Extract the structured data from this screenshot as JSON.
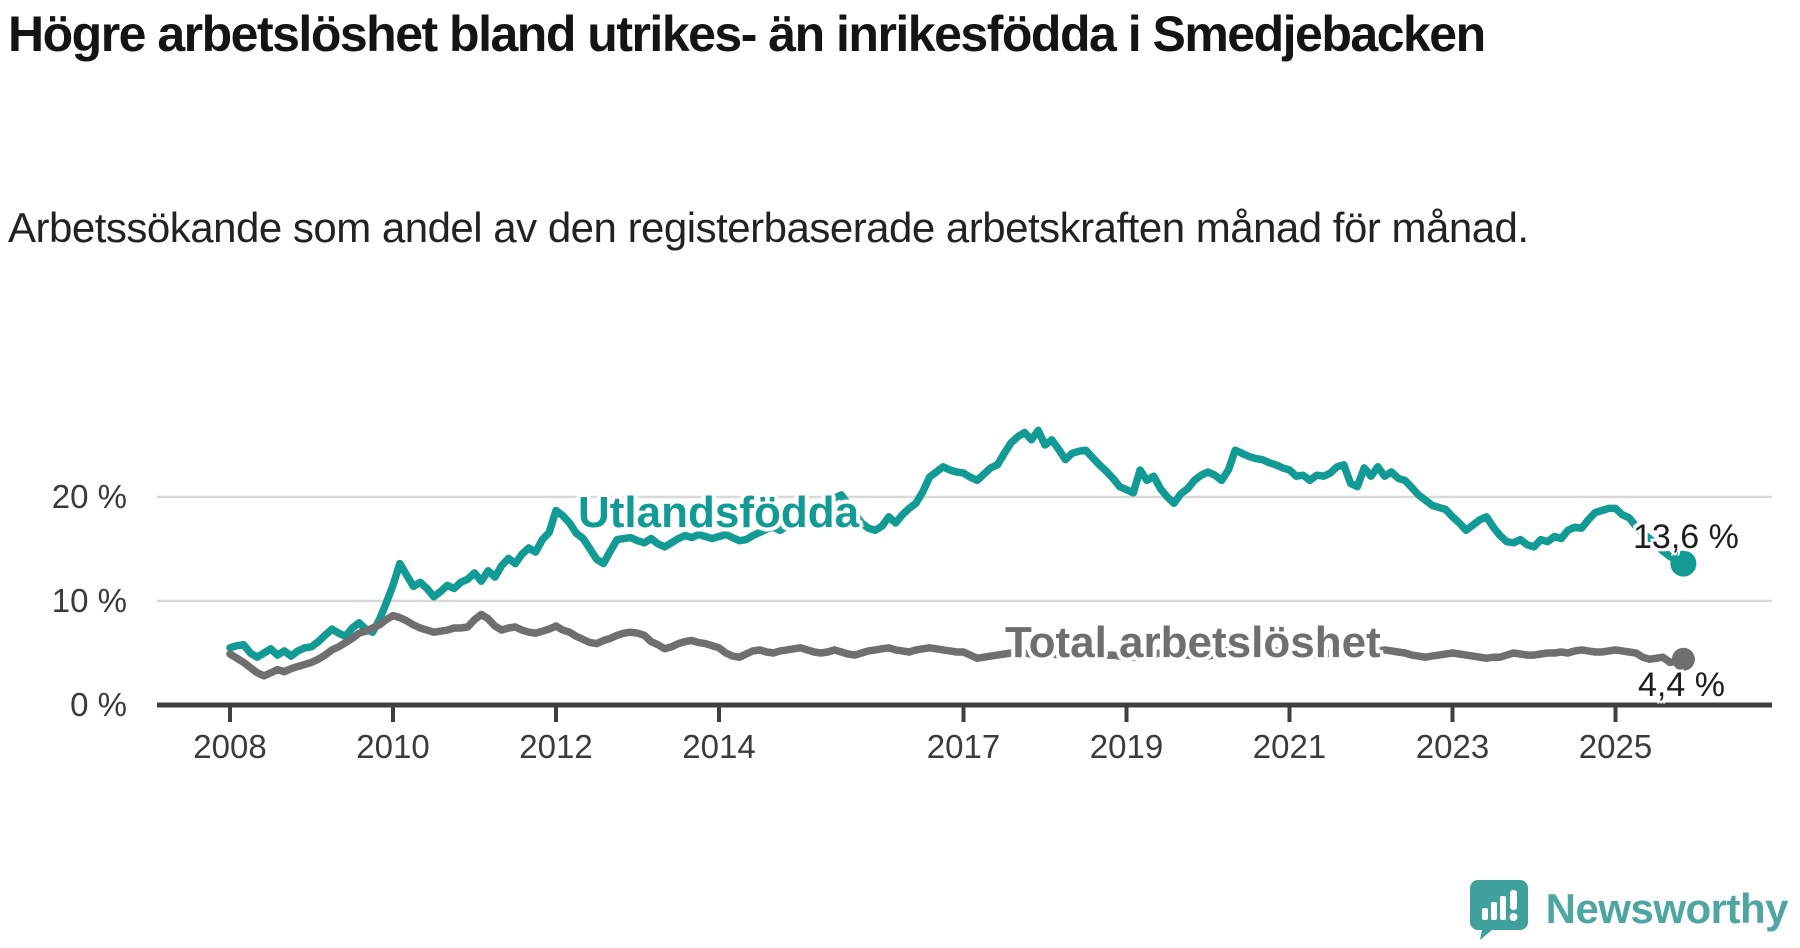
{
  "title": "Högre arbetslöshet bland utrikes- än inrikesfödda i Smedjebacken",
  "subtitle": "Arbetssökande som andel av den registerbaserade arbetskraften månad för månad.",
  "branding": {
    "logo_text": "Newsworthy",
    "logo_icon": "bar-chart-speech-bubble-icon",
    "logo_text_color": "#4ea6a2",
    "logo_icon_color": "#3fa09c"
  },
  "colors": {
    "background": "#ffffff",
    "title_text": "#141414",
    "axis": "#3f3f3f",
    "gridline": "#d9d9d9",
    "tick_text": "#3b3b3b",
    "series_foreign_born": "#129b94",
    "series_total": "#6f6f71"
  },
  "chart_data": {
    "type": "line",
    "title": "Högre arbetslöshet bland utrikes- än inrikesfödda i Smedjebacken",
    "subtitle": "Arbetssökande som andel av den registerbaserade arbetskraften månad för månad.",
    "x_unit": "month",
    "x_range": [
      "2008-01",
      "2025-11"
    ],
    "x_tick_years": [
      2008,
      2010,
      2012,
      2014,
      2017,
      2019,
      2021,
      2023,
      2025
    ],
    "y_ticks": [
      {
        "value": 0,
        "label": "0 %"
      },
      {
        "value": 10,
        "label": "10 %"
      },
      {
        "value": 20,
        "label": "20 %"
      }
    ],
    "ylim": [
      0,
      27
    ],
    "grid": "horizontal",
    "legend": "inline-labels",
    "series": [
      {
        "id": "utlandsfodda",
        "name": "Utlandsfödda",
        "color": "#129b94",
        "end_label": "13,6 %",
        "end_value": 13.6,
        "values": [
          5.5,
          5.7,
          5.8,
          5.0,
          4.6,
          5.0,
          5.4,
          4.8,
          5.2,
          4.7,
          5.2,
          5.5,
          5.6,
          6.1,
          6.7,
          7.3,
          6.9,
          6.6,
          7.4,
          7.9,
          7.3,
          7.0,
          8.2,
          9.8,
          11.5,
          13.6,
          12.5,
          11.4,
          11.8,
          11.2,
          10.4,
          10.9,
          11.5,
          11.2,
          11.8,
          12.1,
          12.7,
          11.9,
          12.9,
          12.3,
          13.4,
          14.1,
          13.6,
          14.5,
          15.1,
          14.7,
          15.9,
          16.6,
          18.7,
          18.2,
          17.5,
          16.5,
          16.0,
          15.0,
          14.0,
          13.6,
          14.8,
          15.9,
          16.0,
          16.1,
          15.8,
          15.6,
          16.0,
          15.5,
          15.2,
          15.6,
          16.0,
          16.3,
          16.1,
          16.4,
          16.2,
          16.0,
          16.2,
          16.4,
          16.1,
          15.8,
          15.9,
          16.3,
          16.6,
          16.9,
          17.1,
          16.8,
          17.2,
          17.5,
          17.8,
          18.2,
          18.6,
          19.0,
          19.5,
          19.9,
          20.2,
          19.3,
          18.4,
          17.5,
          17.0,
          16.8,
          17.2,
          18.1,
          17.5,
          18.3,
          18.9,
          19.4,
          20.5,
          21.9,
          22.4,
          22.9,
          22.6,
          22.4,
          22.3,
          21.9,
          21.6,
          22.2,
          22.8,
          23.1,
          24.2,
          25.2,
          25.8,
          26.2,
          25.5,
          26.4,
          25.0,
          25.5,
          24.6,
          23.6,
          24.2,
          24.4,
          24.5,
          23.8,
          23.1,
          22.5,
          21.8,
          21.0,
          20.7,
          20.4,
          22.6,
          21.6,
          22.0,
          20.8,
          20.0,
          19.4,
          20.3,
          20.8,
          21.6,
          22.1,
          22.4,
          22.1,
          21.6,
          22.6,
          24.5,
          24.2,
          23.9,
          23.7,
          23.6,
          23.3,
          23.1,
          22.8,
          22.6,
          22.0,
          22.1,
          21.6,
          22.1,
          22.0,
          22.3,
          22.9,
          23.1,
          21.3,
          21.0,
          22.8,
          22.0,
          22.9,
          22.0,
          22.4,
          21.8,
          21.6,
          20.9,
          20.2,
          19.7,
          19.2,
          19.0,
          18.8,
          18.1,
          17.5,
          16.8,
          17.3,
          17.8,
          18.1,
          17.1,
          16.3,
          15.7,
          15.6,
          15.9,
          15.4,
          15.2,
          15.9,
          15.7,
          16.2,
          16.0,
          16.8,
          17.1,
          17.0,
          17.8,
          18.5,
          18.7,
          18.9,
          18.9,
          18.3,
          18.0,
          17.2,
          16.5,
          16.0,
          15.4,
          14.8,
          14.3,
          13.9,
          13.6
        ]
      },
      {
        "id": "total-arbetsloshet",
        "name": "Total arbetslöshet",
        "color": "#6f6f71",
        "end_label": "4,4 %",
        "end_value": 4.4,
        "values": [
          4.9,
          4.5,
          4.1,
          3.6,
          3.1,
          2.8,
          3.1,
          3.4,
          3.2,
          3.5,
          3.7,
          3.9,
          4.1,
          4.4,
          4.8,
          5.3,
          5.6,
          6.0,
          6.4,
          6.9,
          7.1,
          7.4,
          7.7,
          8.2,
          8.6,
          8.4,
          8.1,
          7.7,
          7.4,
          7.2,
          7.0,
          7.1,
          7.2,
          7.4,
          7.4,
          7.5,
          8.2,
          8.7,
          8.3,
          7.6,
          7.2,
          7.4,
          7.5,
          7.2,
          7.0,
          6.9,
          7.1,
          7.3,
          7.6,
          7.2,
          7.0,
          6.6,
          6.3,
          6.0,
          5.9,
          6.2,
          6.4,
          6.7,
          6.9,
          7.0,
          6.9,
          6.7,
          6.1,
          5.8,
          5.4,
          5.6,
          5.9,
          6.1,
          6.2,
          6.0,
          5.9,
          5.7,
          5.5,
          5.0,
          4.7,
          4.6,
          4.9,
          5.2,
          5.3,
          5.1,
          5.0,
          5.2,
          5.3,
          5.4,
          5.5,
          5.3,
          5.1,
          5.0,
          5.1,
          5.3,
          5.1,
          4.9,
          4.8,
          5.0,
          5.2,
          5.3,
          5.4,
          5.5,
          5.3,
          5.2,
          5.1,
          5.3,
          5.4,
          5.5,
          5.4,
          5.3,
          5.2,
          5.1,
          5.1,
          4.8,
          4.5,
          4.6,
          4.7,
          4.8,
          4.9,
          5.0,
          5.1,
          5.0,
          4.9,
          5.0,
          5.0,
          4.9,
          4.8,
          4.9,
          5.0,
          5.1,
          5.2,
          5.0,
          4.9,
          4.8,
          4.8,
          4.7,
          4.7,
          4.6,
          4.7,
          4.8,
          4.9,
          5.0,
          5.0,
          4.9,
          4.8,
          4.8,
          4.7,
          4.7,
          4.7,
          4.8,
          5.0,
          5.3,
          5.4,
          5.3,
          5.2,
          5.1,
          5.0,
          5.1,
          5.2,
          5.2,
          5.2,
          5.1,
          5.0,
          4.9,
          4.8,
          4.9,
          5.0,
          5.1,
          5.1,
          5.2,
          5.2,
          5.1,
          5.0,
          5.2,
          5.3,
          5.2,
          5.1,
          5.0,
          4.8,
          4.7,
          4.6,
          4.7,
          4.8,
          4.9,
          5.0,
          4.9,
          4.8,
          4.7,
          4.6,
          4.5,
          4.6,
          4.6,
          4.8,
          5.0,
          4.9,
          4.8,
          4.8,
          4.9,
          5.0,
          5.0,
          5.1,
          5.0,
          5.2,
          5.3,
          5.2,
          5.1,
          5.1,
          5.2,
          5.3,
          5.2,
          5.1,
          5.0,
          4.6,
          4.4,
          4.5,
          4.6,
          4.1,
          4.2,
          4.4
        ]
      }
    ]
  }
}
